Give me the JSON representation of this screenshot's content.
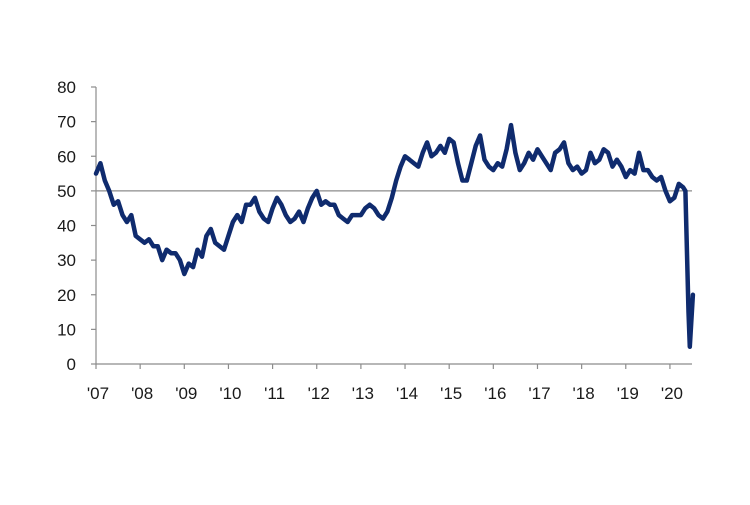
{
  "colors": {
    "series": "#0f2b6e",
    "axis": "#8c8c8c",
    "text": "#1a1a1a"
  },
  "chart_data": {
    "type": "line",
    "title": "",
    "xlabel": "",
    "ylabel": "",
    "ylim": [
      0,
      80
    ],
    "xlim": [
      2007.0,
      2020.5
    ],
    "grid": false,
    "legend": "none",
    "reference_line": {
      "y": 50
    },
    "y_ticks": [
      0,
      10,
      20,
      30,
      40,
      50,
      60,
      70,
      80
    ],
    "x_ticks": [
      {
        "x": 2007,
        "label": "'07"
      },
      {
        "x": 2008,
        "label": "'08"
      },
      {
        "x": 2009,
        "label": "'09"
      },
      {
        "x": 2010,
        "label": "'10"
      },
      {
        "x": 2011,
        "label": "'11"
      },
      {
        "x": 2012,
        "label": "'12"
      },
      {
        "x": 2013,
        "label": "'13"
      },
      {
        "x": 2014,
        "label": "'14"
      },
      {
        "x": 2015,
        "label": "'15"
      },
      {
        "x": 2016,
        "label": "'16"
      },
      {
        "x": 2017,
        "label": "'17"
      },
      {
        "x": 2018,
        "label": "'18"
      },
      {
        "x": 2019,
        "label": "'19"
      },
      {
        "x": 2020,
        "label": "'20"
      }
    ],
    "series": [
      {
        "points": [
          [
            2007.0,
            55
          ],
          [
            2007.1,
            58
          ],
          [
            2007.2,
            53
          ],
          [
            2007.3,
            50
          ],
          [
            2007.4,
            46
          ],
          [
            2007.5,
            47
          ],
          [
            2007.6,
            43
          ],
          [
            2007.7,
            41
          ],
          [
            2007.8,
            43
          ],
          [
            2007.9,
            37
          ],
          [
            2008.0,
            36
          ],
          [
            2008.1,
            35
          ],
          [
            2008.2,
            36
          ],
          [
            2008.3,
            34
          ],
          [
            2008.4,
            34
          ],
          [
            2008.5,
            30
          ],
          [
            2008.6,
            33
          ],
          [
            2008.7,
            32
          ],
          [
            2008.8,
            32
          ],
          [
            2008.9,
            30
          ],
          [
            2009.0,
            26
          ],
          [
            2009.1,
            29
          ],
          [
            2009.2,
            28
          ],
          [
            2009.3,
            33
          ],
          [
            2009.4,
            31
          ],
          [
            2009.5,
            37
          ],
          [
            2009.6,
            39
          ],
          [
            2009.7,
            35
          ],
          [
            2009.8,
            34
          ],
          [
            2009.9,
            33
          ],
          [
            2010.0,
            37
          ],
          [
            2010.1,
            41
          ],
          [
            2010.2,
            43
          ],
          [
            2010.3,
            41
          ],
          [
            2010.4,
            46
          ],
          [
            2010.5,
            46
          ],
          [
            2010.6,
            48
          ],
          [
            2010.7,
            44
          ],
          [
            2010.8,
            42
          ],
          [
            2010.9,
            41
          ],
          [
            2011.0,
            45
          ],
          [
            2011.1,
            48
          ],
          [
            2011.2,
            46
          ],
          [
            2011.3,
            43
          ],
          [
            2011.4,
            41
          ],
          [
            2011.5,
            42
          ],
          [
            2011.6,
            44
          ],
          [
            2011.7,
            41
          ],
          [
            2011.8,
            45
          ],
          [
            2011.9,
            48
          ],
          [
            2012.0,
            50
          ],
          [
            2012.1,
            46
          ],
          [
            2012.2,
            47
          ],
          [
            2012.3,
            46
          ],
          [
            2012.4,
            46
          ],
          [
            2012.5,
            43
          ],
          [
            2012.6,
            42
          ],
          [
            2012.7,
            41
          ],
          [
            2012.8,
            43
          ],
          [
            2012.9,
            43
          ],
          [
            2013.0,
            43
          ],
          [
            2013.1,
            45
          ],
          [
            2013.2,
            46
          ],
          [
            2013.3,
            45
          ],
          [
            2013.4,
            43
          ],
          [
            2013.5,
            42
          ],
          [
            2013.6,
            44
          ],
          [
            2013.7,
            48
          ],
          [
            2013.8,
            53
          ],
          [
            2013.9,
            57
          ],
          [
            2014.0,
            60
          ],
          [
            2014.1,
            59
          ],
          [
            2014.2,
            58
          ],
          [
            2014.3,
            57
          ],
          [
            2014.4,
            61
          ],
          [
            2014.5,
            64
          ],
          [
            2014.6,
            60
          ],
          [
            2014.7,
            61
          ],
          [
            2014.8,
            63
          ],
          [
            2014.9,
            61
          ],
          [
            2015.0,
            65
          ],
          [
            2015.1,
            64
          ],
          [
            2015.2,
            58
          ],
          [
            2015.3,
            53
          ],
          [
            2015.4,
            53
          ],
          [
            2015.5,
            58
          ],
          [
            2015.6,
            63
          ],
          [
            2015.7,
            66
          ],
          [
            2015.8,
            59
          ],
          [
            2015.9,
            57
          ],
          [
            2016.0,
            56
          ],
          [
            2016.1,
            58
          ],
          [
            2016.2,
            57
          ],
          [
            2016.3,
            62
          ],
          [
            2016.4,
            69
          ],
          [
            2016.5,
            61
          ],
          [
            2016.6,
            56
          ],
          [
            2016.7,
            58
          ],
          [
            2016.8,
            61
          ],
          [
            2016.9,
            59
          ],
          [
            2017.0,
            62
          ],
          [
            2017.1,
            60
          ],
          [
            2017.2,
            58
          ],
          [
            2017.3,
            56
          ],
          [
            2017.4,
            61
          ],
          [
            2017.5,
            62
          ],
          [
            2017.6,
            64
          ],
          [
            2017.7,
            58
          ],
          [
            2017.8,
            56
          ],
          [
            2017.9,
            57
          ],
          [
            2018.0,
            55
          ],
          [
            2018.1,
            56
          ],
          [
            2018.2,
            61
          ],
          [
            2018.3,
            58
          ],
          [
            2018.4,
            59
          ],
          [
            2018.5,
            62
          ],
          [
            2018.6,
            61
          ],
          [
            2018.7,
            57
          ],
          [
            2018.8,
            59
          ],
          [
            2018.9,
            57
          ],
          [
            2019.0,
            54
          ],
          [
            2019.1,
            56
          ],
          [
            2019.2,
            55
          ],
          [
            2019.3,
            61
          ],
          [
            2019.4,
            56
          ],
          [
            2019.5,
            56
          ],
          [
            2019.6,
            54
          ],
          [
            2019.7,
            53
          ],
          [
            2019.8,
            54
          ],
          [
            2019.9,
            50
          ],
          [
            2020.0,
            47
          ],
          [
            2020.1,
            48
          ],
          [
            2020.2,
            52
          ],
          [
            2020.3,
            51
          ],
          [
            2020.35,
            50
          ],
          [
            2020.42,
            15
          ],
          [
            2020.45,
            5
          ],
          [
            2020.52,
            20
          ]
        ]
      }
    ]
  }
}
